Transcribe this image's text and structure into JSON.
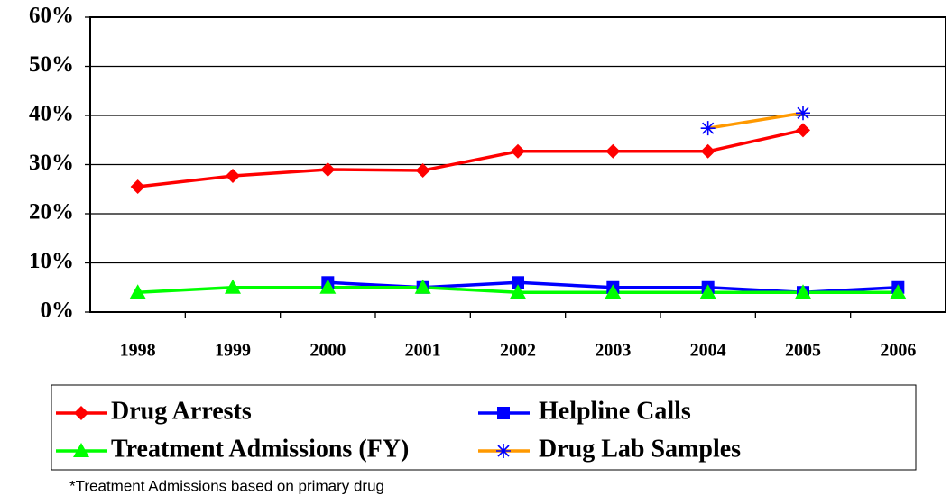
{
  "chart_data": {
    "type": "line",
    "categories": [
      "1998",
      "1999",
      "2000",
      "2001",
      "2002",
      "2003",
      "2004",
      "2005",
      "2006"
    ],
    "series": [
      {
        "name": "Drug Arrests",
        "color": "#ff0000",
        "marker": "diamond",
        "marker_color": "#ff0000",
        "values": [
          25.5,
          27.7,
          29,
          28.8,
          32.7,
          32.7,
          32.7,
          37,
          null
        ]
      },
      {
        "name": "Helpline Calls",
        "color": "#0000ff",
        "marker": "square",
        "marker_color": "#0000ff",
        "values": [
          null,
          null,
          6,
          5,
          6,
          5,
          5,
          4,
          5
        ]
      },
      {
        "name": "Treatment Admissions (FY)",
        "color": "#00ff00",
        "marker": "triangle",
        "marker_color": "#00ff00",
        "values": [
          4,
          5,
          5,
          5,
          4,
          4,
          4,
          4,
          4
        ]
      },
      {
        "name": "Drug Lab Samples",
        "color": "#ff9900",
        "marker": "asterisk",
        "marker_color": "#0000ff",
        "values": [
          null,
          null,
          null,
          null,
          null,
          null,
          37.4,
          40.5,
          null
        ]
      }
    ],
    "ylim": [
      0,
      60
    ],
    "yticks": [
      {
        "value": 0,
        "label": "0%"
      },
      {
        "value": 10,
        "label": "10%"
      },
      {
        "value": 20,
        "label": "20%"
      },
      {
        "value": 30,
        "label": "30%"
      },
      {
        "value": 40,
        "label": "40%"
      },
      {
        "value": 50,
        "label": "50%"
      },
      {
        "value": 60,
        "label": "60%"
      }
    ],
    "grid": true,
    "note": "*Treatment Admissions based on primary drug"
  }
}
